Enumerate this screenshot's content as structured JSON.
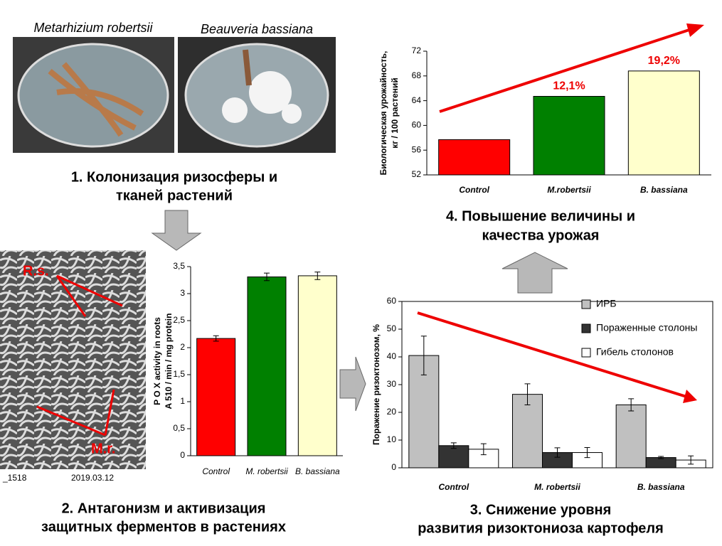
{
  "photos": {
    "labels": [
      "Metarhizium robertsii",
      "Beauveria bassiana"
    ]
  },
  "sem": {
    "labels": [
      "R.s.",
      "M.r."
    ],
    "footer": [
      "_1518",
      "2019.03.12"
    ]
  },
  "captions": [
    [
      "1.   Колонизация ризосферы и",
      "тканей растений"
    ],
    [
      "2. Антагонизм и активизация",
      "защитных ферментов в растениях"
    ],
    [
      "3. Снижение уровня",
      "развития ризоктониоза картофеля"
    ],
    [
      "4. Повышение величины и",
      "качества урожая"
    ]
  ],
  "chart_data": [
    {
      "type": "bar",
      "ylabel": [
        "Биологическая урожайность,",
        "кг / 100 растений"
      ],
      "categories": [
        "Control",
        "M.robertsii",
        "B. bassiana"
      ],
      "values": [
        57.7,
        64.7,
        68.8
      ],
      "colors": [
        "#ff0000",
        "#008000",
        "#ffffcc"
      ],
      "annotations": [
        null,
        "12,1%",
        "19,2%"
      ],
      "ylim": [
        52,
        72
      ],
      "yticks": [
        52,
        56,
        60,
        64,
        68,
        72
      ]
    },
    {
      "type": "bar",
      "ylabel": [
        "P O X  activity in roots",
        "A 510 / min / mg protein"
      ],
      "categories": [
        "Control",
        "M. robertsii",
        "B. bassiana"
      ],
      "values": [
        2.17,
        3.31,
        3.33
      ],
      "errors": [
        0.05,
        0.07,
        0.07
      ],
      "colors": [
        "#ff0000",
        "#008000",
        "#ffffcc"
      ],
      "ylim": [
        0,
        3.5
      ],
      "yticks": [
        0,
        {
          "value": 0.5,
          "label": "0,5"
        },
        1,
        {
          "value": 1.5,
          "label": "1,5"
        },
        2,
        {
          "value": 2.5,
          "label": "2,5"
        },
        3,
        {
          "value": 3.5,
          "label": "3,5"
        }
      ]
    },
    {
      "type": "grouped_bar",
      "ylabel": [
        "Поражение ризоктонозом, %"
      ],
      "categories": [
        "Control",
        "M. robertsii",
        "B. bassiana"
      ],
      "series": [
        {
          "name": "ИРБ",
          "color": "#c0c0c0",
          "values": [
            40.5,
            26.5,
            22.7
          ],
          "errors": [
            7,
            3.8,
            2.2
          ]
        },
        {
          "name": "Пораженные столоны",
          "color": "#333333",
          "values": [
            8,
            5.5,
            3.7
          ],
          "errors": [
            1,
            1.7,
            0.4
          ]
        },
        {
          "name": "Гибель столонов",
          "color": "#ffffff",
          "values": [
            6.7,
            5.5,
            2.8
          ],
          "errors": [
            2,
            1.8,
            1.5
          ]
        }
      ],
      "ylim": [
        0,
        60
      ],
      "yticks": [
        0,
        10,
        20,
        30,
        40,
        50,
        60
      ]
    }
  ]
}
